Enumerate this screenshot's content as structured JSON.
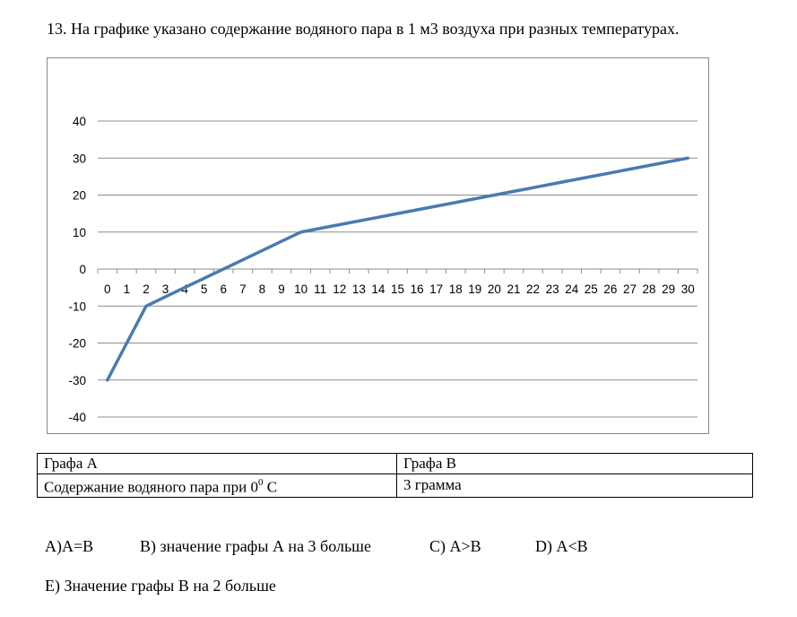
{
  "question": {
    "text": "13. На графике указано содержание водяного пара в 1 м3 воздуха при разных температурах."
  },
  "chart_data": {
    "type": "line",
    "title": "",
    "xlabel": "",
    "ylabel": "",
    "categories": [
      "0",
      "1",
      "2",
      "3",
      "4",
      "5",
      "6",
      "7",
      "8",
      "9",
      "10",
      "11",
      "12",
      "13",
      "14",
      "15",
      "16",
      "17",
      "18",
      "19",
      "20",
      "21",
      "22",
      "23",
      "24",
      "25",
      "26",
      "27",
      "28",
      "29",
      "30"
    ],
    "y_ticks": [
      "40",
      "30",
      "20",
      "10",
      "0",
      "-10",
      "-20",
      "-30",
      "-40"
    ],
    "ylim": [
      -40,
      40
    ],
    "grid": true,
    "legend": "none",
    "series": [
      {
        "color": "#4a7ab0",
        "values": [
          -30,
          -20,
          -10,
          -7.5,
          -5,
          -2.5,
          0,
          2.5,
          5,
          7.5,
          10,
          11,
          12,
          13,
          14,
          15,
          16,
          17,
          18,
          19,
          20,
          21,
          22,
          23,
          24,
          25,
          26,
          27,
          28,
          29,
          30
        ]
      }
    ]
  },
  "table": {
    "header_a": "Графа А",
    "header_b": "Графа В",
    "row_a_text": "Содержание водяного пара при 0",
    "row_a_degree": "0",
    "row_a_unit": " С",
    "row_b_value": "3 грамма"
  },
  "options": {
    "a": "А)А=В",
    "b": "В) значение графы А на 3 больше",
    "c": "С) А>В",
    "d": "D) А<В",
    "e": "Е) Значение графы В на 2 больше"
  }
}
